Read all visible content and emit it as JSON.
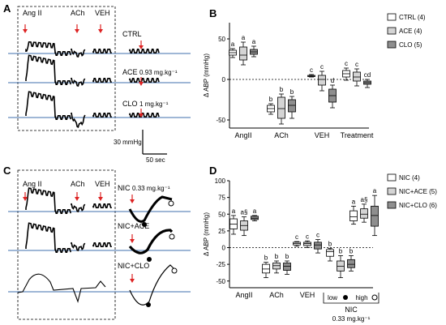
{
  "panels": {
    "A": {
      "letter": "A",
      "stim": [
        "Ang II",
        "ACh",
        "VEH"
      ],
      "traces": [
        {
          "label": "CTRL",
          "dose": ""
        },
        {
          "label": "ACE",
          "dose": "0.93 mg.kg⁻¹"
        },
        {
          "label": "CLO",
          "dose": "1 mg.kg⁻¹"
        }
      ],
      "scale_y": "30 mmHg",
      "scale_x": "50 sec"
    },
    "C": {
      "letter": "C",
      "stim": [
        "Ang II",
        "ACh",
        "VEH"
      ],
      "traces": [
        {
          "label": "NIC",
          "dose": "0.33 mg.kg⁻¹"
        },
        {
          "label": "NIC+ACE",
          "dose": ""
        },
        {
          "label": "NIC+CLO",
          "dose": ""
        }
      ]
    }
  },
  "chart_data": [
    {
      "type": "box",
      "panel": "B",
      "ylabel": "Δ ABP (mmHg)",
      "ylim": [
        -60,
        70
      ],
      "yticks": [
        -50,
        0,
        50
      ],
      "groups": [
        "AngII",
        "ACh",
        "VEH",
        "Treatment"
      ],
      "series": [
        {
          "name": "CTRL",
          "n": "(4)",
          "fill": "#ffffff",
          "boxes": [
            [
              27,
              30,
              33,
              36,
              38
            ],
            [
              -43,
              -40,
              -36,
              -32,
              -30
            ],
            [
              3,
              3.5,
              4,
              5,
              6
            ],
            [
              -1,
              3,
              7,
              11,
              14
            ]
          ]
        },
        {
          "name": "ACE",
          "n": "(4)",
          "fill": "#d4d4d4",
          "boxes": [
            [
              18,
              24,
              30,
              40,
              46
            ],
            [
              -55,
              -48,
              -36,
              -22,
              -18
            ],
            [
              -14,
              -7,
              0,
              5,
              10
            ],
            [
              -8,
              -2,
              3,
              9,
              13
            ]
          ]
        },
        {
          "name": "CLO",
          "n": "(5)",
          "fill": "#8e8e8e",
          "boxes": [
            [
              28,
              31,
              34,
              37,
              41
            ],
            [
              -48,
              -40,
              -32,
              -25,
              -21
            ],
            [
              -35,
              -28,
              -20,
              -12,
              -7
            ],
            [
              -10,
              -6,
              -4,
              -2,
              0
            ]
          ]
        }
      ],
      "letters": [
        [
          "a",
          "a",
          "a"
        ],
        [
          "b",
          "b",
          "b"
        ],
        [
          "c",
          "c",
          "d"
        ],
        [
          "c",
          "c",
          "cd"
        ]
      ]
    },
    {
      "type": "box",
      "panel": "D",
      "ylabel": "Δ ABP (mmHg)",
      "ylim": [
        -60,
        100
      ],
      "yticks": [
        -50,
        -25,
        0,
        25,
        50,
        75,
        100
      ],
      "groups": [
        "AngII",
        "ACh",
        "VEH",
        "NIC"
      ],
      "group_sublabels": {
        "low": "low",
        "high": "high",
        "dose": "0.33 mg.kg⁻¹"
      },
      "series": [
        {
          "name": "NIC",
          "n": "(4)",
          "fill": "#ffffff",
          "boxes": [
            [
              20,
              28,
              35,
              43,
              48
            ],
            [
              -45,
              -38,
              -32,
              -25,
              -22
            ],
            [
              2,
              4,
              6,
              8,
              9
            ],
            [
              -20,
              -13,
              -6,
              -3,
              -1
            ],
            [
              35,
              40,
              46,
              55,
              62
            ]
          ]
        },
        {
          "name": "NIC+ACE",
          "n": "(5)",
          "fill": "#d4d4d4",
          "boxes": [
            [
              18,
              26,
              33,
              40,
              46
            ],
            [
              -38,
              -32,
              -27,
              -23,
              -20
            ],
            [
              0,
              3,
              6,
              8,
              10
            ],
            [
              -45,
              -35,
              -28,
              -20,
              -12
            ],
            [
              38,
              44,
              50,
              58,
              65
            ]
          ]
        },
        {
          "name": "NIC+CLO",
          "n": "(6)",
          "fill": "#8e8e8e",
          "boxes": [
            [
              40,
              42,
              44,
              47,
              48
            ],
            [
              -40,
              -34,
              -28,
              -23,
              -20
            ],
            [
              -8,
              -2,
              4,
              8,
              12
            ],
            [
              -35,
              -30,
              -25,
              -18,
              -12
            ],
            [
              18,
              32,
              48,
              62,
              78
            ]
          ]
        }
      ],
      "letters": [
        [
          "a",
          "a§",
          "a"
        ],
        [
          "b",
          "b",
          "b"
        ],
        [
          "c",
          "c",
          "c"
        ],
        [
          "b",
          "b",
          "b"
        ],
        [
          "a",
          "a§",
          "a"
        ]
      ]
    }
  ]
}
